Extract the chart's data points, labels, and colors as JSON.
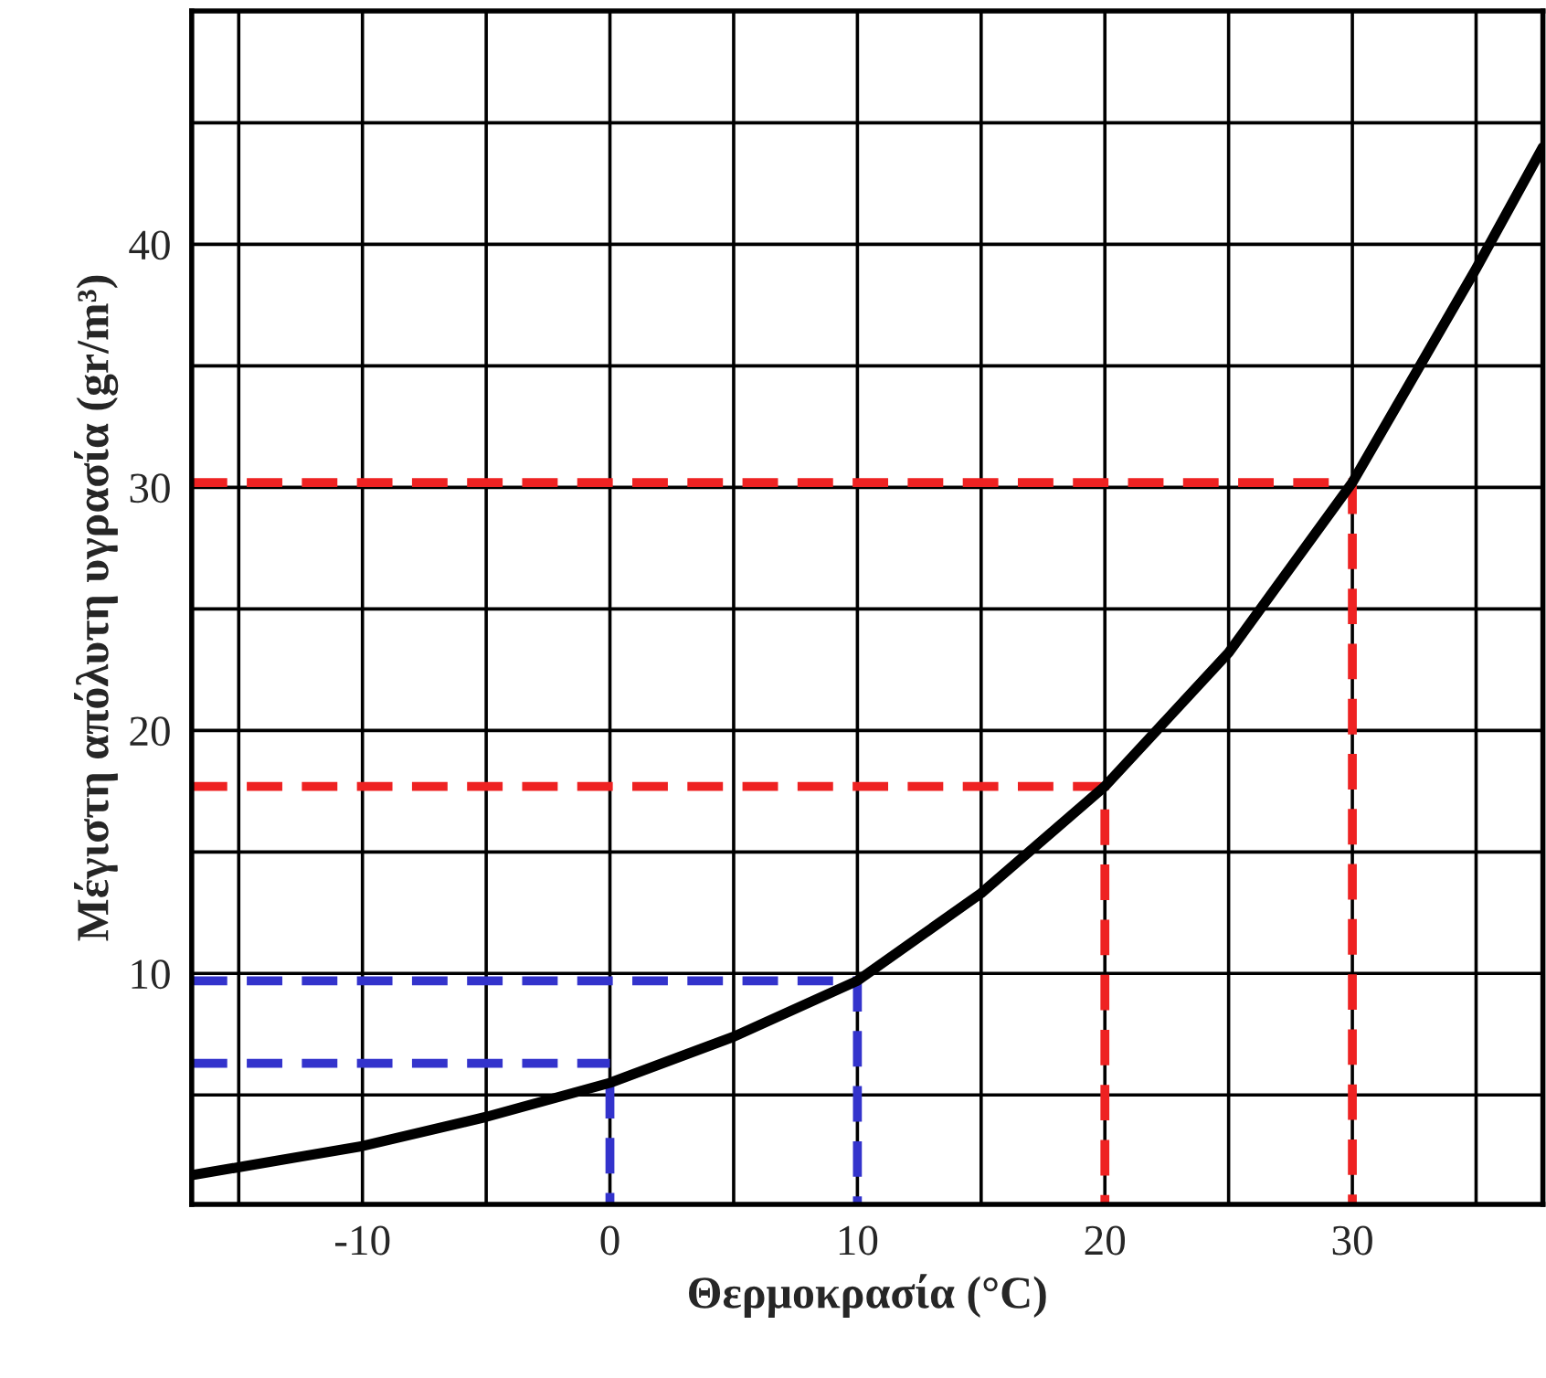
{
  "chart_data": {
    "type": "line",
    "xlabel": "Θερμοκρασία (°C)",
    "ylabel": "Μέγιστη απόλυτη υγρασία (gr/m³)",
    "xlim": [
      -16.9,
      37.7
    ],
    "ylim": [
      0.5,
      49.6
    ],
    "xticks": [
      {
        "value": -15,
        "label": null
      },
      -10,
      {
        "value": -5,
        "label": null
      },
      0,
      {
        "value": 5,
        "label": null
      },
      10,
      {
        "value": 15,
        "label": null
      },
      20,
      {
        "value": 25,
        "label": null
      },
      30,
      {
        "value": 35,
        "label": null
      }
    ],
    "yticks": [
      {
        "value": 5,
        "label": null
      },
      10,
      {
        "value": 15,
        "label": null
      },
      20,
      {
        "value": 25,
        "label": null
      },
      30,
      {
        "value": 35,
        "label": null
      },
      40,
      {
        "value": 45,
        "label": null
      }
    ],
    "grid": true,
    "series": [
      {
        "color": "#000000",
        "line_style": "solid",
        "x": [
          -16.9,
          -10,
          -5,
          0,
          5,
          10,
          15,
          20,
          25,
          30,
          35,
          37.7
        ],
        "values": [
          1.7,
          2.9,
          4.1,
          5.5,
          7.4,
          9.7,
          13.3,
          17.7,
          23.2,
          30.2,
          39,
          44
        ]
      },
      {
        "color": "#3333cc",
        "line_style": "dashed",
        "x": [
          -16.9,
          10,
          10
        ],
        "values": [
          9.7,
          9.7,
          0.5
        ]
      },
      {
        "color": "#3333cc",
        "line_style": "dashed",
        "x": [
          -16.9,
          0
        ],
        "values": [
          6.3,
          6.3
        ]
      },
      {
        "color": "#3333cc",
        "line_style": "dashed",
        "x": [
          0,
          0
        ],
        "values": [
          5.5,
          0.5
        ]
      },
      {
        "color": "#ee2222",
        "line_style": "dashed",
        "x": [
          -16.9,
          20,
          20
        ],
        "values": [
          17.7,
          17.7,
          0.5
        ]
      },
      {
        "color": "#ee2222",
        "line_style": "dashed",
        "x": [
          -16.9,
          30,
          30
        ],
        "values": [
          30.2,
          30.2,
          0.5
        ]
      }
    ]
  }
}
